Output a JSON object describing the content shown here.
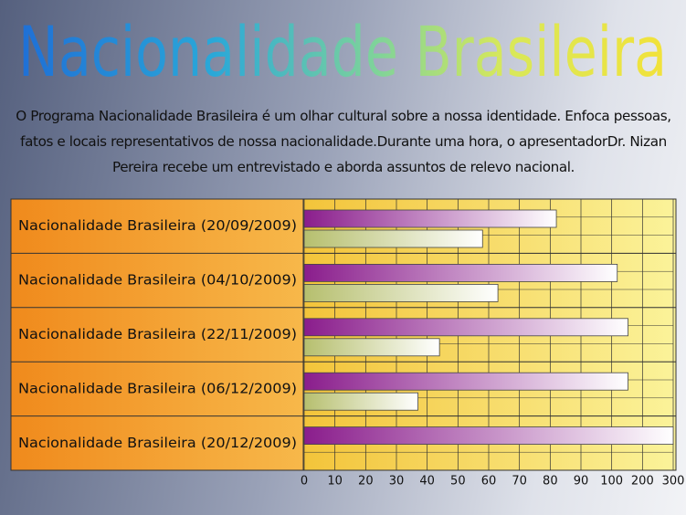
{
  "title": "Nacionalidade Brasileira",
  "description": "O Programa Nacionalidade Brasileira é um olhar cultural sobre a nossa identidade. Enfoca pessoas, fatos e locais representativos de nossa nacionalidade.Durante uma hora, o apresentadorDr. Nizan Pereira recebe um entrevistado e aborda assuntos de relevo nacional.",
  "chart_data": {
    "type": "bar",
    "orientation": "horizontal",
    "categories": [
      "Nacionalidade Brasileira (20/09/2009)",
      "Nacionalidade Brasileira (04/10/2009)",
      "Nacionalidade Brasileira (22/11/2009)",
      "Nacionalidade Brasileira (06/12/2009)",
      "Nacionalidade Brasileira (20/12/2009)"
    ],
    "series": [
      {
        "color": "#8a1d8c",
        "values": [
          82,
          118,
          153,
          153,
          300
        ]
      },
      {
        "color": "#b6bf6e",
        "values": [
          58,
          63,
          44,
          37,
          null
        ]
      }
    ],
    "xlim": [
      0,
      300
    ],
    "xticks": [
      0,
      10,
      20,
      30,
      40,
      50,
      60,
      70,
      80,
      90,
      100,
      200,
      300
    ],
    "grid": true
  }
}
